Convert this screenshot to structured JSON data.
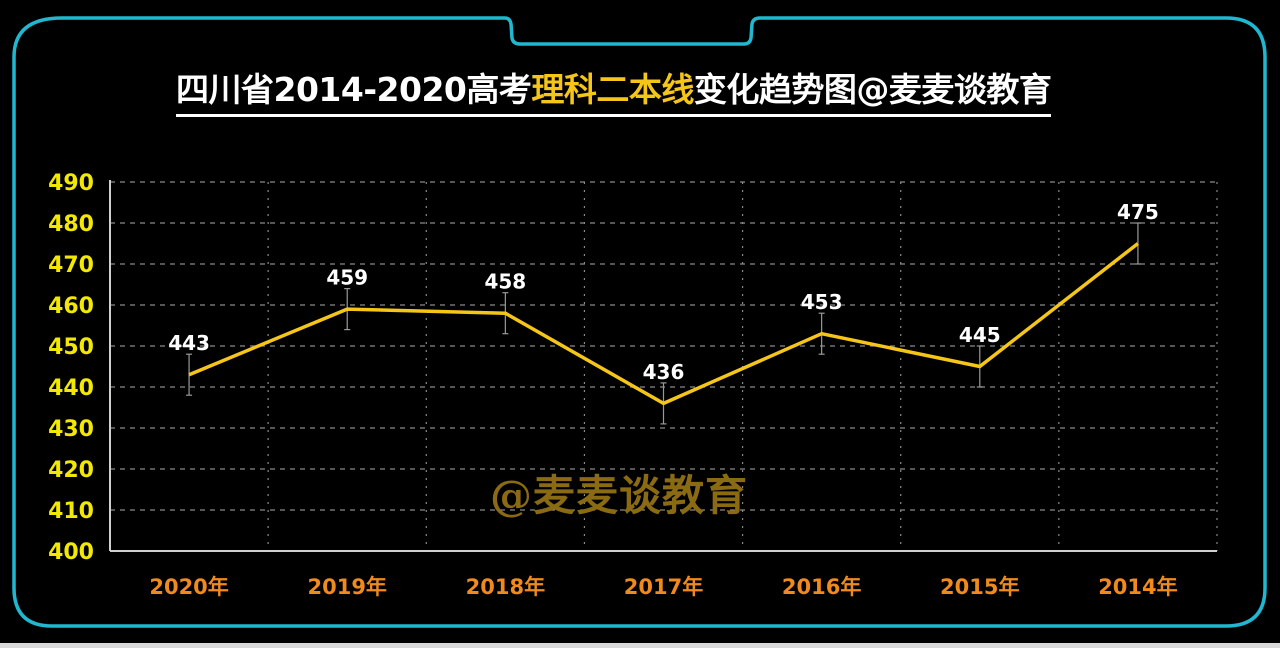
{
  "title": {
    "part1": "四川省2014-2020高考",
    "highlight": "理科二本线",
    "part2": "变化趋势图@麦麦谈教育"
  },
  "watermark": "@麦麦谈教育",
  "colors": {
    "frame": "#1fb8d0",
    "line": "#f5c518",
    "ytick": "#f2e800",
    "xtick": "#f08a1c",
    "label": "#ffffff",
    "background": "#000000"
  },
  "chart_data": {
    "type": "line",
    "title": "四川省2014-2020高考理科二本线变化趋势图@麦麦谈教育",
    "xlabel": "",
    "ylabel": "",
    "categories": [
      "2020年",
      "2019年",
      "2018年",
      "2017年",
      "2016年",
      "2015年",
      "2014年"
    ],
    "series": [
      {
        "name": "理科二本线",
        "values": [
          443,
          459,
          458,
          436,
          453,
          445,
          475
        ],
        "error_bars": 5
      }
    ],
    "ylim": [
      400,
      490
    ],
    "yticks": [
      400,
      410,
      420,
      430,
      440,
      450,
      460,
      470,
      480,
      490
    ],
    "grid": true,
    "legend": "none",
    "data_labels": true
  }
}
